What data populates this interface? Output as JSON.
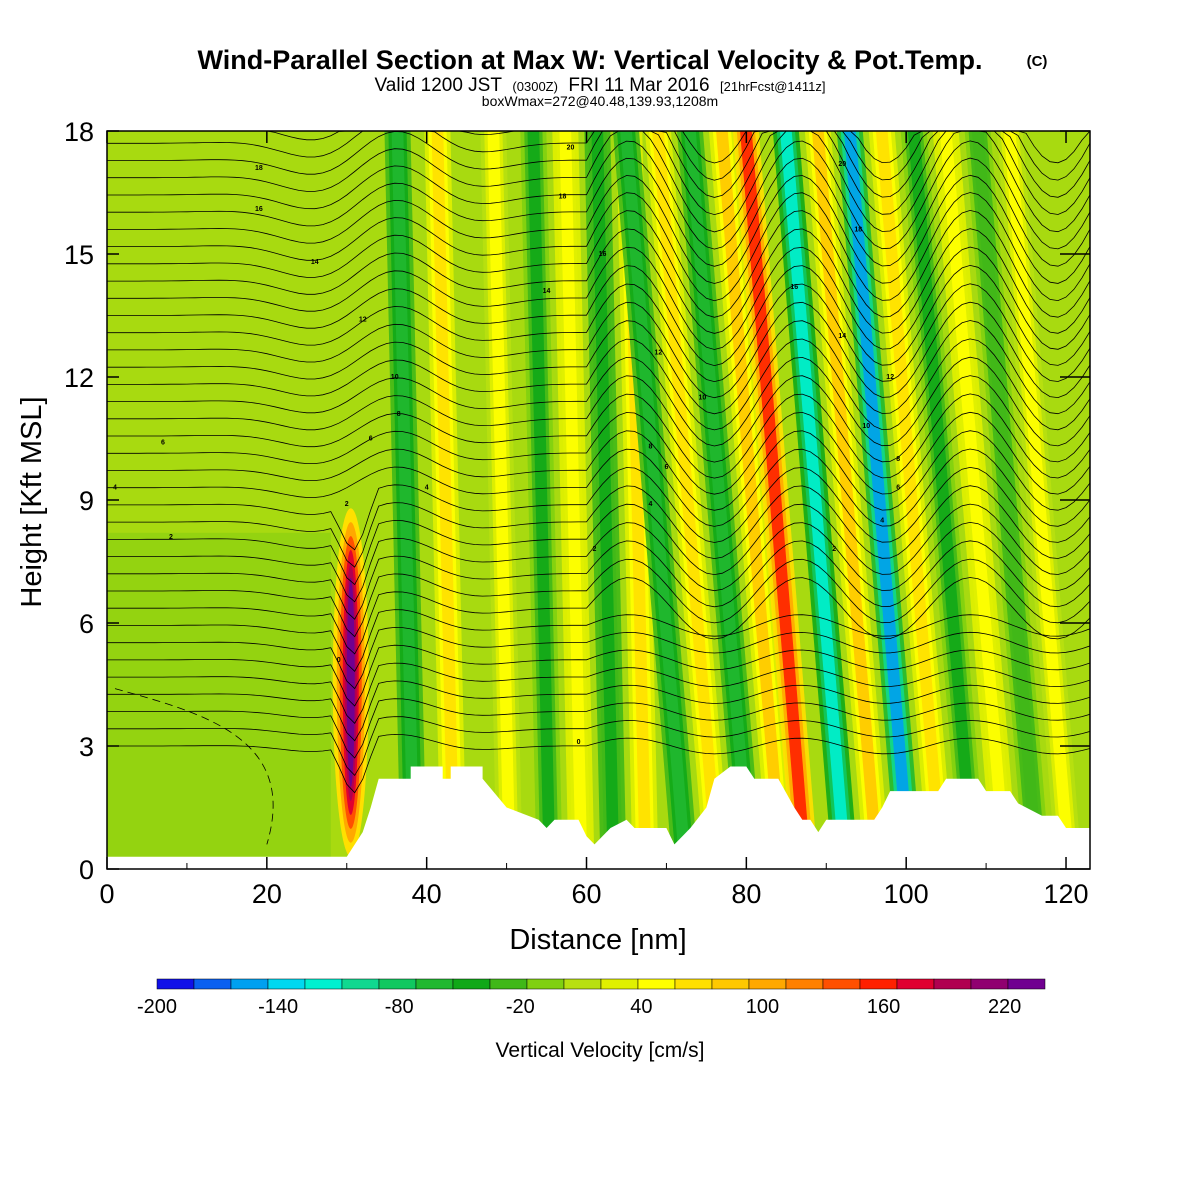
{
  "title": {
    "main": "Wind-Parallel Section at Max W: Vertical Velocity & Pot.Temp.",
    "units_tag": "(C)",
    "valid_prefix": "Valid 1200 JST",
    "valid_utc": "(0300Z)",
    "valid_date": "FRI 11 Mar 2016",
    "forecast": "[21hrFcst@1411z]",
    "boxinfo": "boxWmax=272@40.48,139.93,1208m"
  },
  "chart_data": {
    "type": "heatmap",
    "xlabel": "Distance [nm]",
    "ylabel": "Height [Kft MSL]",
    "xlim": [
      0,
      123
    ],
    "ylim": [
      0,
      18
    ],
    "x_ticks": [
      "0",
      "20",
      "40",
      "60",
      "80",
      "100",
      "120"
    ],
    "y_ticks": [
      "0",
      "3",
      "6",
      "9",
      "12",
      "15",
      "18"
    ],
    "colorbar": {
      "label": "Vertical Velocity [cm/s]",
      "range": [
        -200,
        240
      ],
      "tick_labels": [
        "-200",
        "-140",
        "-80",
        "-20",
        "40",
        "100",
        "160",
        "220"
      ],
      "colors": [
        "#1010e8",
        "#0a60f0",
        "#00a0f0",
        "#00d8f0",
        "#00f0d0",
        "#10d890",
        "#10c860",
        "#20b830",
        "#10a818",
        "#40b818",
        "#80d010",
        "#b8e010",
        "#e0f000",
        "#ffff00",
        "#ffe000",
        "#ffc800",
        "#ffa800",
        "#ff8000",
        "#ff5000",
        "#ff2000",
        "#e00030",
        "#b00050",
        "#900070",
        "#700090"
      ]
    },
    "velocity_bands": [
      {
        "x": 30.5,
        "value": 240,
        "ymin": 0.3,
        "ymax": 8.8
      },
      {
        "x": 38,
        "value": -60
      },
      {
        "x": 43,
        "value": 60
      },
      {
        "x": 50,
        "value": 40
      },
      {
        "x": 55,
        "value": -40
      },
      {
        "x": 59,
        "value": 50
      },
      {
        "x": 63,
        "value": -50
      },
      {
        "x": 67,
        "value": 60
      },
      {
        "x": 71,
        "value": -60
      },
      {
        "x": 75,
        "value": 60
      },
      {
        "x": 79,
        "value": -70
      },
      {
        "x": 83,
        "value": 80
      },
      {
        "x": 86,
        "value": 150
      },
      {
        "x": 91,
        "value": -110
      },
      {
        "x": 95,
        "value": 80
      },
      {
        "x": 99,
        "value": -150
      },
      {
        "x": 103,
        "value": 60
      },
      {
        "x": 107,
        "value": -40
      },
      {
        "x": 111,
        "value": 50
      },
      {
        "x": 115,
        "value": -30
      },
      {
        "x": 119,
        "value": 40
      }
    ],
    "terrain": [
      [
        0,
        0.3
      ],
      [
        20,
        0.3
      ],
      [
        30,
        0.3
      ],
      [
        32,
        0.9
      ],
      [
        33,
        1.5
      ],
      [
        34,
        2.2
      ],
      [
        38,
        2.2
      ],
      [
        38,
        2.5
      ],
      [
        42,
        2.5
      ],
      [
        42,
        2.2
      ],
      [
        43,
        2.2
      ],
      [
        43,
        2.5
      ],
      [
        47,
        2.5
      ],
      [
        47,
        2.2
      ],
      [
        50,
        1.5
      ],
      [
        54,
        1.2
      ],
      [
        55,
        1.0
      ],
      [
        56,
        1.2
      ],
      [
        59,
        1.2
      ],
      [
        60,
        0.8
      ],
      [
        61,
        0.6
      ],
      [
        63,
        1.0
      ],
      [
        65,
        1.2
      ],
      [
        66,
        1.0
      ],
      [
        70,
        1.0
      ],
      [
        71,
        0.6
      ],
      [
        72,
        0.8
      ],
      [
        73,
        1.0
      ],
      [
        75,
        1.5
      ],
      [
        76,
        2.2
      ],
      [
        78,
        2.5
      ],
      [
        80,
        2.5
      ],
      [
        81,
        2.2
      ],
      [
        84,
        2.2
      ],
      [
        86,
        1.5
      ],
      [
        87,
        1.2
      ],
      [
        88,
        1.2
      ],
      [
        89,
        0.9
      ],
      [
        90,
        1.2
      ],
      [
        96,
        1.2
      ],
      [
        97,
        1.5
      ],
      [
        98,
        1.9
      ],
      [
        104,
        1.9
      ],
      [
        105,
        2.2
      ],
      [
        109,
        2.2
      ],
      [
        110,
        1.9
      ],
      [
        113,
        1.9
      ],
      [
        114,
        1.6
      ],
      [
        117,
        1.3
      ],
      [
        119,
        1.3
      ],
      [
        120,
        1.0
      ],
      [
        123,
        1.0
      ]
    ],
    "theta_contour_labels": [
      {
        "x": 19,
        "y": 17.1,
        "text": "18"
      },
      {
        "x": 19,
        "y": 16.1,
        "text": "16"
      },
      {
        "x": 26,
        "y": 14.8,
        "text": "14"
      },
      {
        "x": 32,
        "y": 13.4,
        "text": "12"
      },
      {
        "x": 36,
        "y": 12.0,
        "text": "10"
      },
      {
        "x": 36.5,
        "y": 11.1,
        "text": "8"
      },
      {
        "x": 33,
        "y": 10.5,
        "text": "6"
      },
      {
        "x": 7,
        "y": 10.4,
        "text": "6"
      },
      {
        "x": 1,
        "y": 9.3,
        "text": "4"
      },
      {
        "x": 40,
        "y": 9.3,
        "text": "4"
      },
      {
        "x": 30,
        "y": 8.9,
        "text": "2"
      },
      {
        "x": 8,
        "y": 8.1,
        "text": "2"
      },
      {
        "x": 29,
        "y": 5.1,
        "text": "0"
      },
      {
        "x": 58,
        "y": 17.6,
        "text": "20"
      },
      {
        "x": 57,
        "y": 16.4,
        "text": "18"
      },
      {
        "x": 62,
        "y": 15.0,
        "text": "16"
      },
      {
        "x": 55,
        "y": 14.1,
        "text": "14"
      },
      {
        "x": 69,
        "y": 12.6,
        "text": "12"
      },
      {
        "x": 74.5,
        "y": 11.5,
        "text": "10"
      },
      {
        "x": 68,
        "y": 10.3,
        "text": "8"
      },
      {
        "x": 70,
        "y": 9.8,
        "text": "6"
      },
      {
        "x": 68,
        "y": 8.9,
        "text": "4"
      },
      {
        "x": 61,
        "y": 7.8,
        "text": "2"
      },
      {
        "x": 59,
        "y": 3.1,
        "text": "0"
      },
      {
        "x": 92,
        "y": 17.2,
        "text": "20"
      },
      {
        "x": 94,
        "y": 15.6,
        "text": "18"
      },
      {
        "x": 86,
        "y": 14.2,
        "text": "16"
      },
      {
        "x": 92,
        "y": 13.0,
        "text": "14"
      },
      {
        "x": 98,
        "y": 12.0,
        "text": "12"
      },
      {
        "x": 95,
        "y": 10.8,
        "text": "10"
      },
      {
        "x": 99,
        "y": 10.0,
        "text": "8"
      },
      {
        "x": 99,
        "y": 9.3,
        "text": "6"
      },
      {
        "x": 97,
        "y": 8.5,
        "text": "4"
      },
      {
        "x": 91,
        "y": 7.8,
        "text": "2"
      }
    ]
  }
}
